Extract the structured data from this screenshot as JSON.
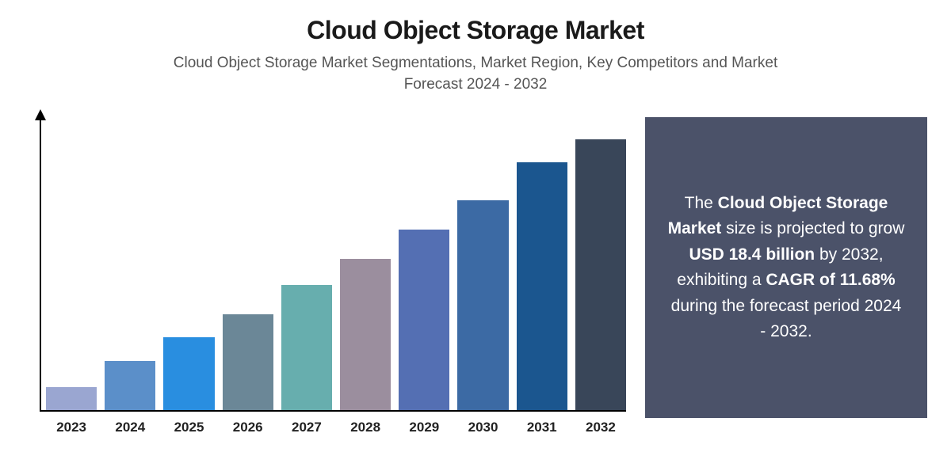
{
  "title": "Cloud Object Storage Market",
  "subtitle": "Cloud Object Storage Market Segmentations, Market Region, Key Competitors and Market Forecast 2024 - 2032",
  "chart": {
    "type": "bar",
    "categories": [
      "2023",
      "2024",
      "2025",
      "2026",
      "2027",
      "2028",
      "2029",
      "2030",
      "2031",
      "2032"
    ],
    "values": [
      8,
      17,
      25,
      33,
      43,
      52,
      62,
      72,
      85,
      93
    ],
    "bar_colors": [
      "#9aa6d1",
      "#5b8fc9",
      "#298ee0",
      "#6b8797",
      "#67aeae",
      "#9b8e9e",
      "#546fb3",
      "#3c6aa4",
      "#1b568f",
      "#394659"
    ],
    "ylim": [
      0,
      100
    ],
    "label_fontsize": 17,
    "label_fontweight": 600,
    "axis_color": "#000000",
    "background_color": "#ffffff"
  },
  "info": {
    "background_color": "#4b5269",
    "text_color": "#ffffff",
    "fontsize": 21,
    "parts": {
      "p1": "The ",
      "b1": "Cloud Object Storage Market",
      "p2": " size is projected to grow ",
      "b2": "USD 18.4 billion",
      "p3": " by 2032, exhibiting a ",
      "b3": "CAGR of 11.68%",
      "p4": " during the forecast period 2024 - 2032."
    }
  }
}
